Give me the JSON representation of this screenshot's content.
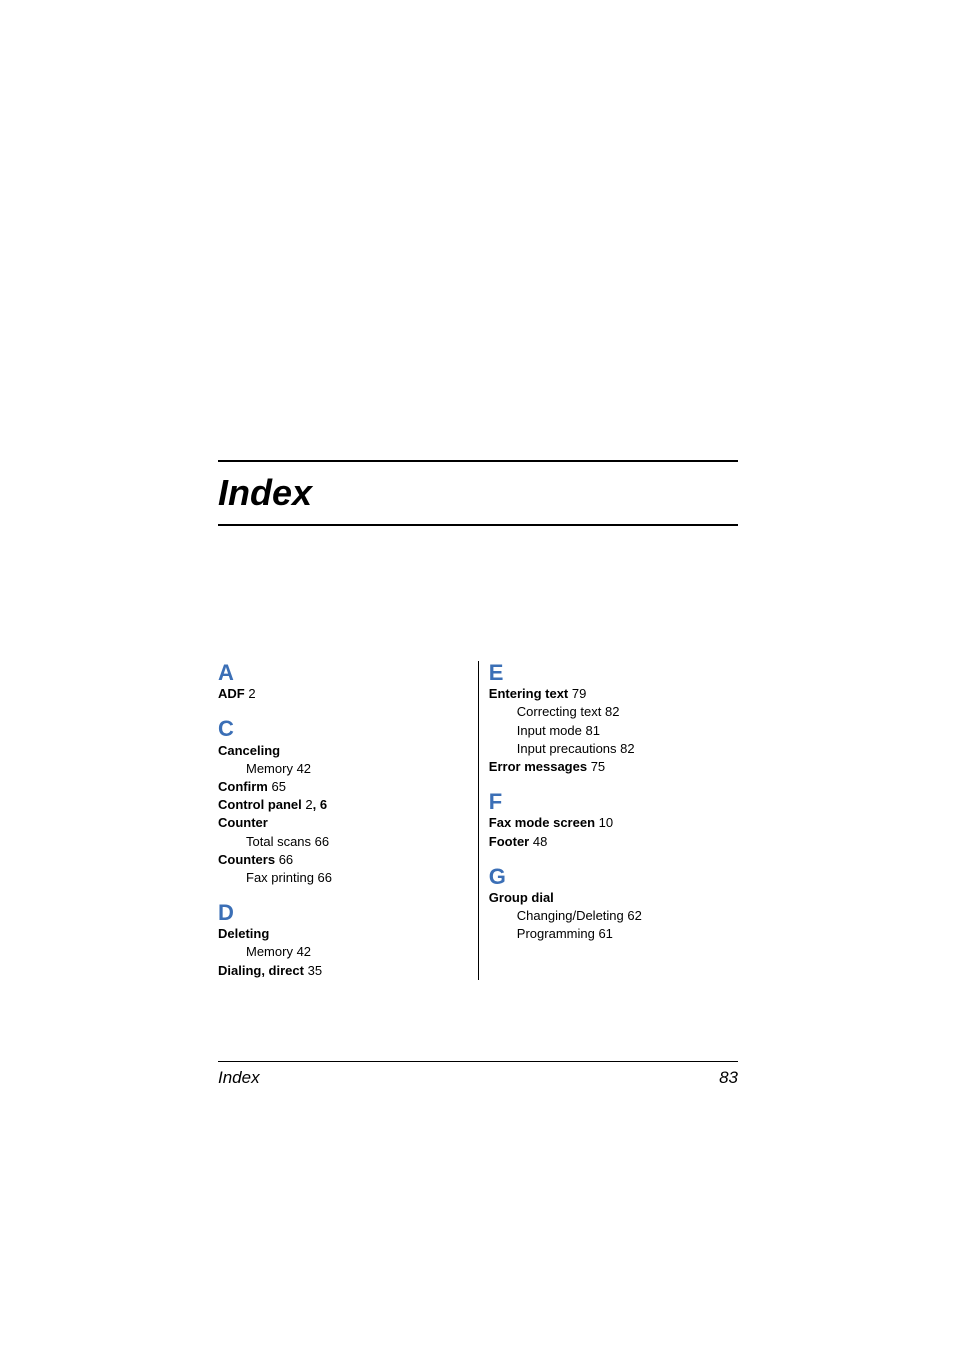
{
  "title": "Index",
  "footer": {
    "label": "Index",
    "page": "83"
  },
  "style": {
    "letter_color": "#3b6fb6",
    "text_color": "#000000",
    "background_color": "#ffffff",
    "title_fontsize": 36,
    "letter_fontsize": 22,
    "entry_fontsize": 13,
    "footer_fontsize": 17
  },
  "left": {
    "sections": [
      {
        "letter": "A",
        "entries": [
          {
            "term": "ADF",
            "pages": "2"
          }
        ]
      },
      {
        "letter": "C",
        "entries": [
          {
            "term": "Canceling",
            "pages": "",
            "subs": [
              {
                "label": "Memory",
                "pages": "42"
              }
            ]
          },
          {
            "term": "Confirm",
            "pages": "65"
          },
          {
            "term": "Control panel",
            "pages": "2",
            "extra": ", 6"
          },
          {
            "term": "Counter",
            "pages": "",
            "subs": [
              {
                "label": "Total scans",
                "pages": "66"
              }
            ]
          },
          {
            "term": "Counters",
            "pages": "66",
            "subs": [
              {
                "label": "Fax printing",
                "pages": "66"
              }
            ]
          }
        ]
      },
      {
        "letter": "D",
        "entries": [
          {
            "term": "Deleting",
            "pages": "",
            "subs": [
              {
                "label": "Memory",
                "pages": "42"
              }
            ]
          },
          {
            "term": "Dialing, direct",
            "pages": "35"
          }
        ]
      }
    ]
  },
  "right": {
    "sections": [
      {
        "letter": "E",
        "entries": [
          {
            "term": "Entering text",
            "pages": "79",
            "subs": [
              {
                "label": "Correcting text",
                "pages": "82"
              },
              {
                "label": "Input mode",
                "pages": "81"
              },
              {
                "label": "Input precautions",
                "pages": "82"
              }
            ]
          },
          {
            "term": "Error messages",
            "pages": "75"
          }
        ]
      },
      {
        "letter": "F",
        "entries": [
          {
            "term": "Fax mode screen",
            "pages": "10"
          },
          {
            "term": "Footer",
            "pages": "48"
          }
        ]
      },
      {
        "letter": "G",
        "entries": [
          {
            "term": "Group dial",
            "pages": "",
            "subs": [
              {
                "label": "Changing/Deleting",
                "pages": "62"
              },
              {
                "label": "Programming",
                "pages": "61"
              }
            ]
          }
        ]
      }
    ]
  }
}
